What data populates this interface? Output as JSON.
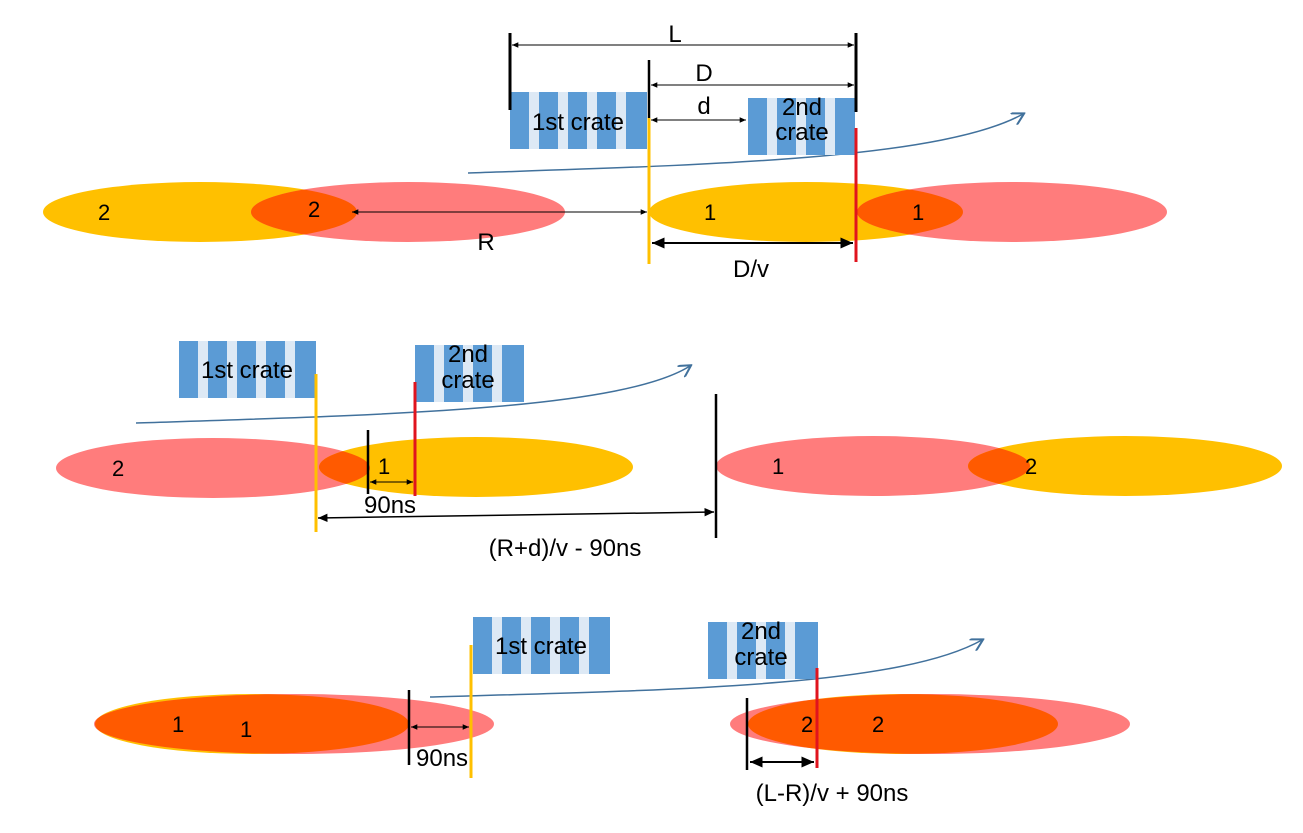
{
  "colors": {
    "orange": "#ffc000",
    "pink": "#ff7c7c",
    "overlap": "#ff5a00",
    "crate_blue": "#5b9bd5",
    "crate_light": "#dde9f5",
    "red_line": "#e0141e",
    "yellow_line": "#ffc000",
    "arrow_blue": "#41719c"
  },
  "panel1": {
    "crate1_label": "1st crate",
    "crate2_line1": "2nd",
    "crate2_line2": "crate",
    "L": "L",
    "D": "D",
    "d": "d",
    "R": "R",
    "Dv": "D/v",
    "left_orange_num": "2",
    "left_overlap_num": "2",
    "right_orange_num": "1",
    "right_overlap_num": "1"
  },
  "panel2": {
    "crate1_label": "1st crate",
    "crate2_line1": "2nd",
    "crate2_line2": "crate",
    "left_pink_num": "2",
    "overlap_num": "1",
    "ns": "90ns",
    "formula": "(R+d)/v - 90ns",
    "right_pink_num": "1",
    "right_overlap_num": "2"
  },
  "panel3": {
    "crate1_label": "1st crate",
    "crate2_line1": "2nd",
    "crate2_line2": "crate",
    "left_orange_num": "1",
    "left_overlap_num": "1",
    "ns": "90ns",
    "right_orange_num": "2",
    "right_overlap_num": "2",
    "formula": "(L-R)/v + 90ns"
  }
}
